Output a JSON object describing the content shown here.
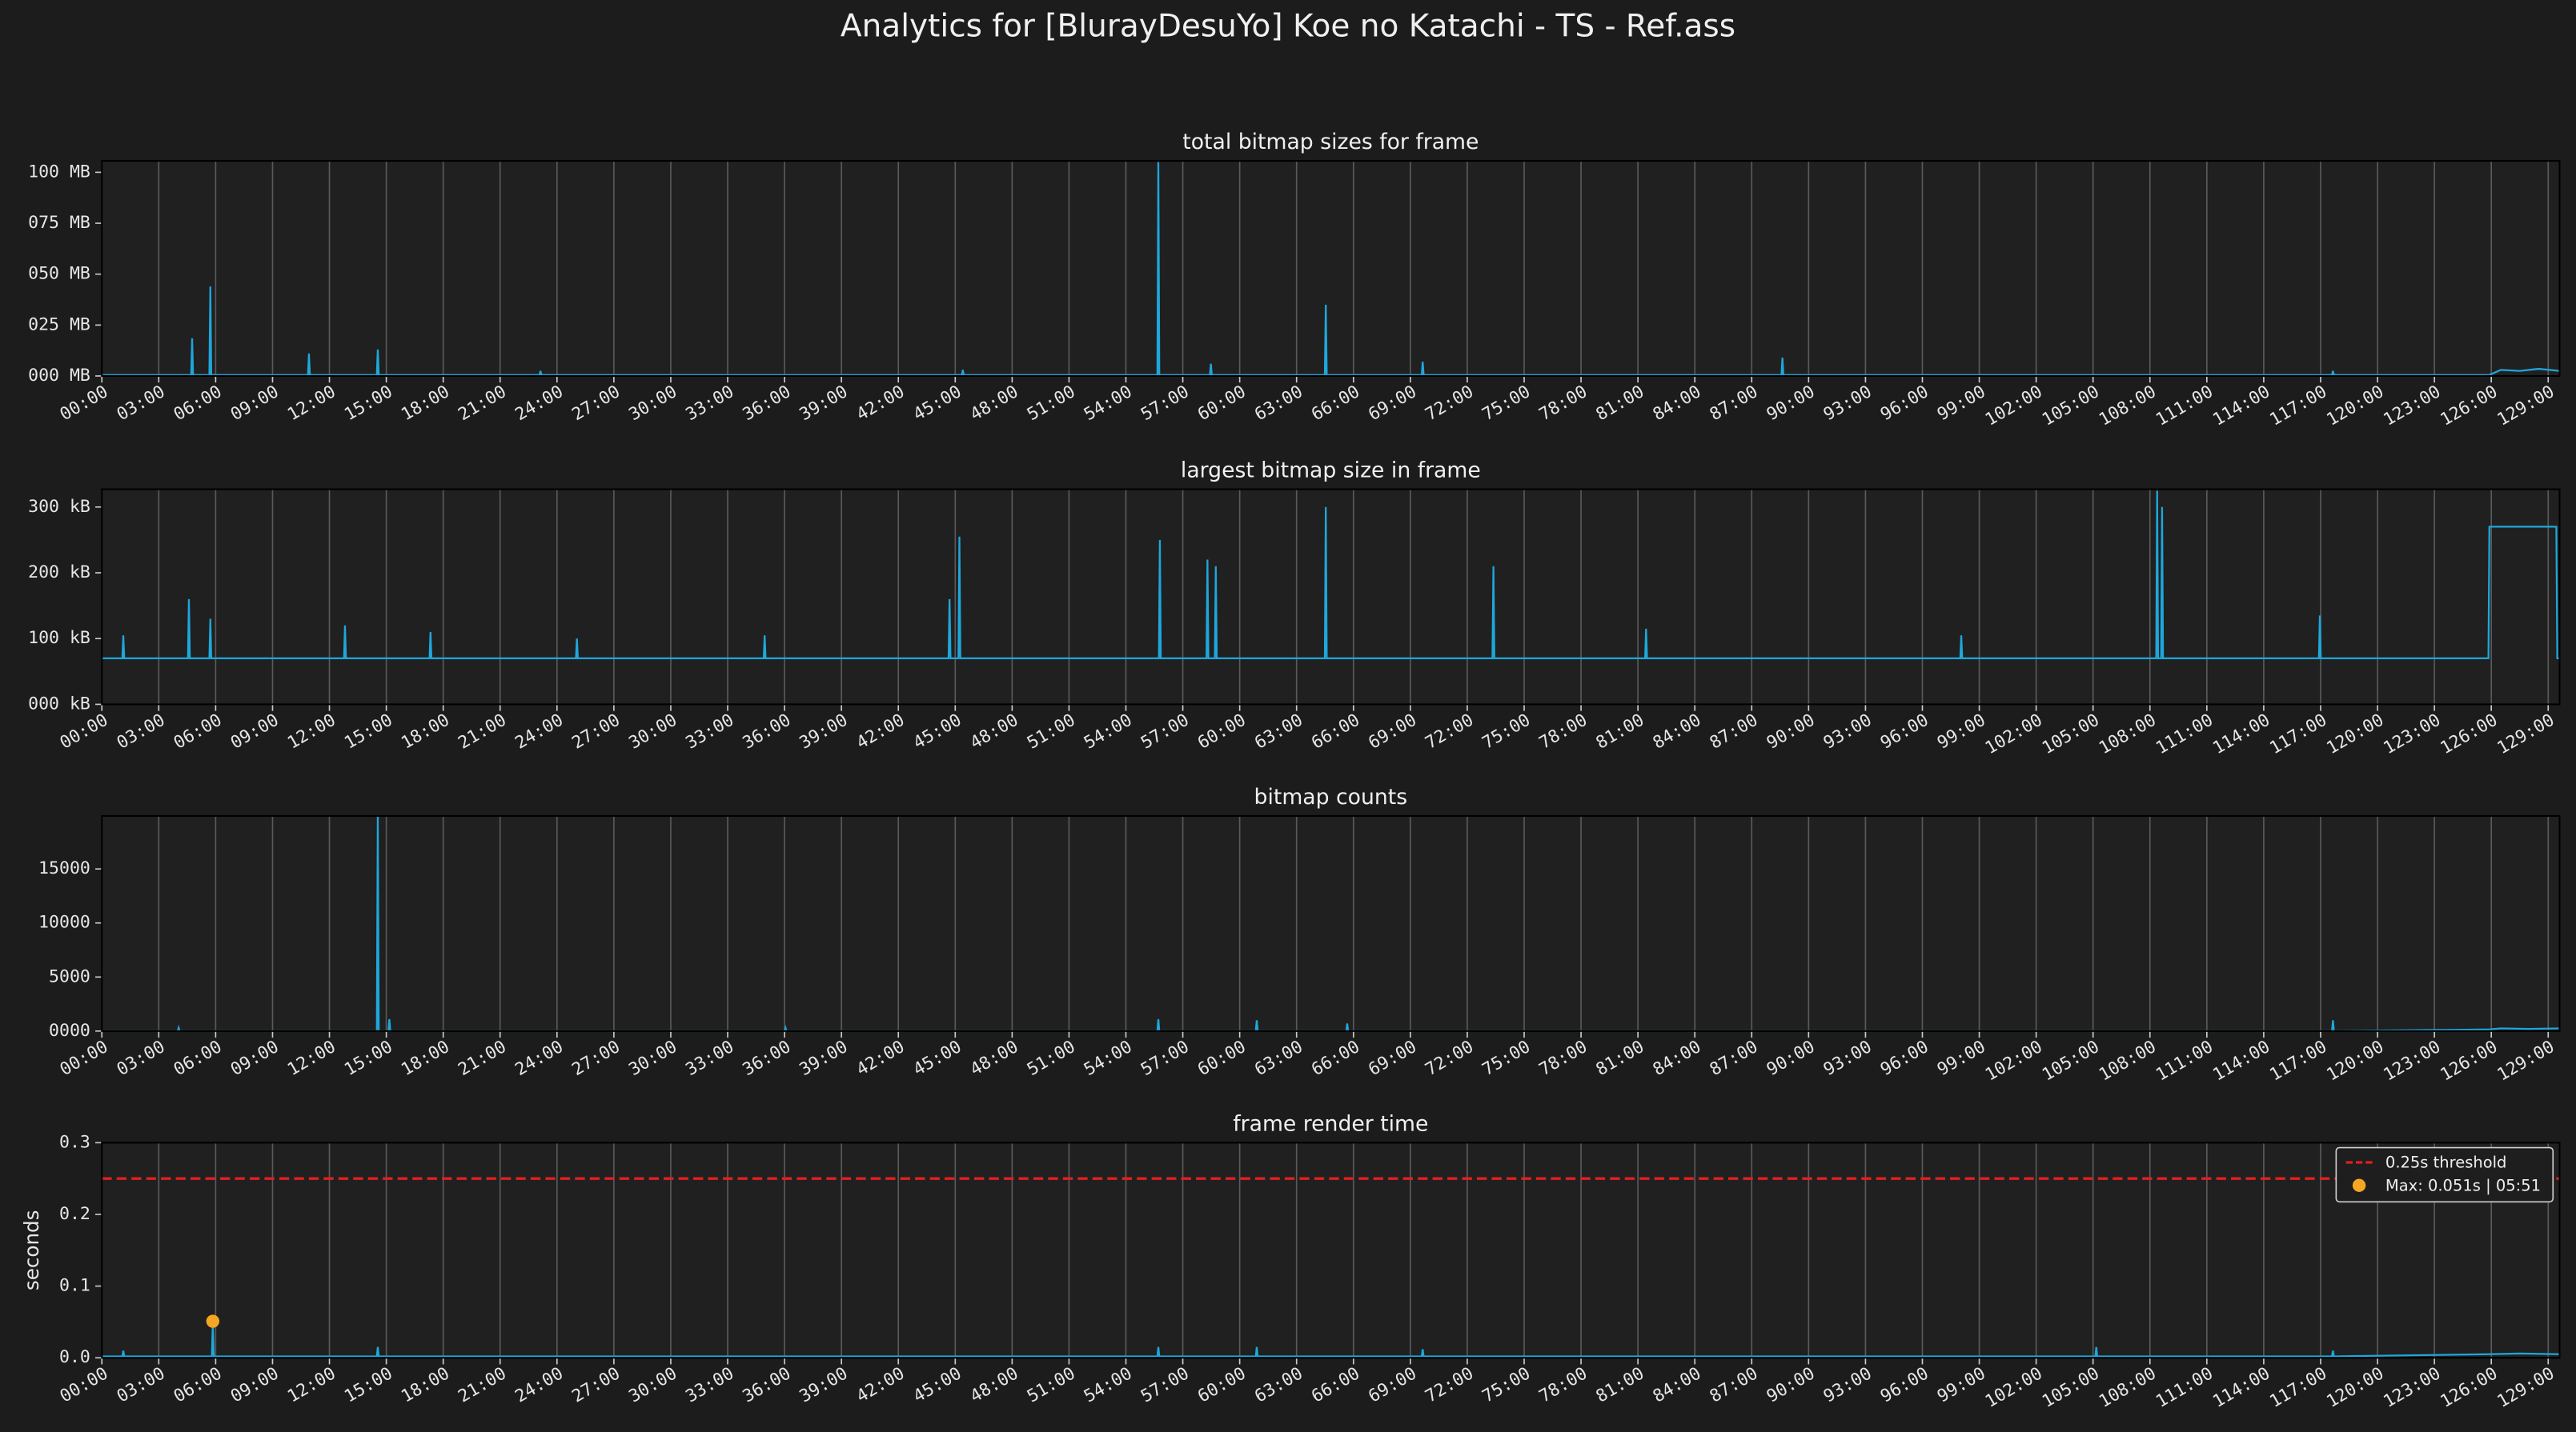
{
  "title": "Analytics for [BlurayDesuYo] Koe no Katachi - TS - Ref.ass",
  "xlim": [
    0,
    129.6
  ],
  "xticks": [
    {
      "value": 0,
      "label": "00:00"
    },
    {
      "value": 3,
      "label": "03:00"
    },
    {
      "value": 6,
      "label": "06:00"
    },
    {
      "value": 9,
      "label": "09:00"
    },
    {
      "value": 12,
      "label": "12:00"
    },
    {
      "value": 15,
      "label": "15:00"
    },
    {
      "value": 18,
      "label": "18:00"
    },
    {
      "value": 21,
      "label": "21:00"
    },
    {
      "value": 24,
      "label": "24:00"
    },
    {
      "value": 27,
      "label": "27:00"
    },
    {
      "value": 30,
      "label": "30:00"
    },
    {
      "value": 33,
      "label": "33:00"
    },
    {
      "value": 36,
      "label": "36:00"
    },
    {
      "value": 39,
      "label": "39:00"
    },
    {
      "value": 42,
      "label": "42:00"
    },
    {
      "value": 45,
      "label": "45:00"
    },
    {
      "value": 48,
      "label": "48:00"
    },
    {
      "value": 51,
      "label": "51:00"
    },
    {
      "value": 54,
      "label": "54:00"
    },
    {
      "value": 57,
      "label": "57:00"
    },
    {
      "value": 60,
      "label": "60:00"
    },
    {
      "value": 63,
      "label": "63:00"
    },
    {
      "value": 66,
      "label": "66:00"
    },
    {
      "value": 69,
      "label": "69:00"
    },
    {
      "value": 72,
      "label": "72:00"
    },
    {
      "value": 75,
      "label": "75:00"
    },
    {
      "value": 78,
      "label": "78:00"
    },
    {
      "value": 81,
      "label": "81:00"
    },
    {
      "value": 84,
      "label": "84:00"
    },
    {
      "value": 87,
      "label": "87:00"
    },
    {
      "value": 90,
      "label": "90:00"
    },
    {
      "value": 93,
      "label": "93:00"
    },
    {
      "value": 96,
      "label": "96:00"
    },
    {
      "value": 99,
      "label": "99:00"
    },
    {
      "value": 102,
      "label": "102:00"
    },
    {
      "value": 105,
      "label": "105:00"
    },
    {
      "value": 108,
      "label": "108:00"
    },
    {
      "value": 111,
      "label": "111:00"
    },
    {
      "value": 114,
      "label": "114:00"
    },
    {
      "value": 117,
      "label": "117:00"
    },
    {
      "value": 120,
      "label": "120:00"
    },
    {
      "value": 123,
      "label": "123:00"
    },
    {
      "value": 126,
      "label": "126:00"
    },
    {
      "value": 129,
      "label": "129:00"
    }
  ],
  "chart_data": [
    {
      "type": "line",
      "title": "total bitmap sizes for frame",
      "color": "#1ea7dc",
      "ylim": [
        0,
        105.6
      ],
      "yticks": [
        {
          "value": 0,
          "label": "000 MB"
        },
        {
          "value": 25,
          "label": "025 MB"
        },
        {
          "value": 50,
          "label": "050 MB"
        },
        {
          "value": 75,
          "label": "075 MB"
        },
        {
          "value": 100,
          "label": "100 MB"
        }
      ],
      "x": [
        0,
        4.71,
        4.76,
        4.81,
        5.67,
        5.72,
        5.77,
        10.87,
        10.92,
        10.97,
        14.5,
        14.55,
        14.6,
        23.08,
        23.13,
        23.18,
        45.35,
        45.4,
        45.45,
        55.66,
        55.71,
        55.76,
        58.43,
        58.48,
        58.53,
        64.49,
        64.54,
        64.59,
        69.6,
        69.65,
        69.7,
        88.57,
        88.62,
        88.67,
        117.6,
        117.65,
        117.7,
        125.9,
        126.5,
        127.5,
        128.5,
        129.6
      ],
      "values": [
        0.5,
        0.5,
        18.5,
        0.5,
        0.5,
        44,
        0.5,
        0.5,
        11,
        0.5,
        0.5,
        13,
        0.5,
        0.5,
        2.5,
        0.5,
        0.5,
        3,
        0.5,
        0.5,
        105,
        0.5,
        0.5,
        6,
        0.5,
        0.5,
        35,
        0.5,
        0.5,
        7,
        0.5,
        0.5,
        9,
        0.5,
        0.5,
        2.5,
        0.5,
        0.5,
        3,
        2.5,
        3.5,
        2.5
      ]
    },
    {
      "type": "line",
      "title": "largest bitmap size in frame",
      "color": "#1ea7dc",
      "ylim": [
        0,
        327
      ],
      "yticks": [
        {
          "value": 0,
          "label": "000 kB"
        },
        {
          "value": 100,
          "label": "100 kB"
        },
        {
          "value": 200,
          "label": "200 kB"
        },
        {
          "value": 300,
          "label": "300 kB"
        }
      ],
      "x": [
        0,
        1.08,
        1.13,
        1.18,
        4.54,
        4.59,
        4.64,
        5.67,
        5.72,
        5.77,
        12.77,
        12.82,
        12.87,
        17.28,
        17.33,
        17.38,
        25.0,
        25.05,
        25.1,
        34.9,
        34.95,
        35.0,
        44.65,
        44.7,
        44.75,
        45.17,
        45.22,
        45.27,
        55.74,
        55.79,
        55.84,
        58.25,
        58.3,
        58.35,
        58.69,
        58.74,
        58.79,
        64.49,
        64.54,
        64.59,
        73.33,
        73.38,
        73.43,
        81.38,
        81.43,
        81.48,
        98.0,
        98.05,
        98.1,
        108.33,
        108.38,
        108.43,
        108.59,
        108.64,
        108.69,
        116.91,
        116.96,
        117.01,
        125.85,
        125.9,
        129.43,
        129.48,
        129.6
      ],
      "values": [
        70,
        70,
        105,
        70,
        70,
        160,
        70,
        70,
        130,
        70,
        70,
        120,
        70,
        70,
        110,
        70,
        70,
        100,
        70,
        70,
        105,
        70,
        70,
        160,
        70,
        70,
        255,
        70,
        70,
        250,
        70,
        70,
        220,
        70,
        70,
        210,
        70,
        70,
        300,
        70,
        70,
        210,
        70,
        70,
        115,
        70,
        70,
        105,
        70,
        70,
        325,
        70,
        70,
        300,
        70,
        70,
        135,
        70,
        70,
        270,
        270,
        70,
        70
      ]
    },
    {
      "type": "line",
      "title": "bitmap counts",
      "color": "#1ea7dc",
      "ylim": [
        0,
        19900
      ],
      "yticks": [
        {
          "value": 0,
          "label": "0000"
        },
        5000,
        10000,
        15000
      ],
      "x": [
        0,
        4.0,
        4.05,
        4.1,
        14.5,
        14.55,
        14.6,
        15.11,
        15.16,
        15.21,
        36.0,
        36.05,
        36.1,
        55.66,
        55.71,
        55.76,
        60.85,
        60.9,
        60.95,
        65.62,
        65.67,
        65.72,
        117.6,
        117.65,
        117.7,
        125.9,
        126.5,
        128.0,
        129.6
      ],
      "values": [
        0,
        0,
        300,
        0,
        0,
        19900,
        0,
        0,
        1100,
        0,
        0,
        300,
        0,
        0,
        1100,
        0,
        0,
        1000,
        0,
        0,
        700,
        0,
        0,
        1000,
        0,
        150,
        250,
        200,
        250
      ]
    },
    {
      "type": "line",
      "title": "frame render time",
      "ylabel": "seconds",
      "color": "#1ea7dc",
      "ylim": [
        0,
        0.3
      ],
      "yticks": [
        {
          "value": 0,
          "label": "0.0"
        },
        0.1,
        0.2,
        0.3
      ],
      "x": [
        0,
        1.08,
        1.13,
        1.18,
        5.8,
        5.85,
        5.9,
        14.5,
        14.55,
        14.6,
        55.66,
        55.71,
        55.76,
        60.85,
        60.9,
        60.95,
        69.6,
        69.65,
        69.7,
        105.12,
        105.17,
        105.22,
        117.6,
        117.65,
        117.7,
        125.9,
        127.5,
        129.6
      ],
      "values": [
        0.002,
        0.002,
        0.01,
        0.002,
        0.002,
        0.05,
        0.002,
        0.002,
        0.015,
        0.002,
        0.002,
        0.015,
        0.002,
        0.002,
        0.015,
        0.002,
        0.002,
        0.012,
        0.002,
        0.002,
        0.015,
        0.002,
        0.002,
        0.01,
        0.002,
        0.005,
        0.006,
        0.005
      ],
      "threshold": {
        "label": "0.25s threshold",
        "value": 0.25,
        "color": "#e02020"
      },
      "max_point": {
        "label": "Max: 0.051s | 05:51",
        "x": 5.85,
        "y": 0.051,
        "color": "#f5a623"
      }
    }
  ]
}
